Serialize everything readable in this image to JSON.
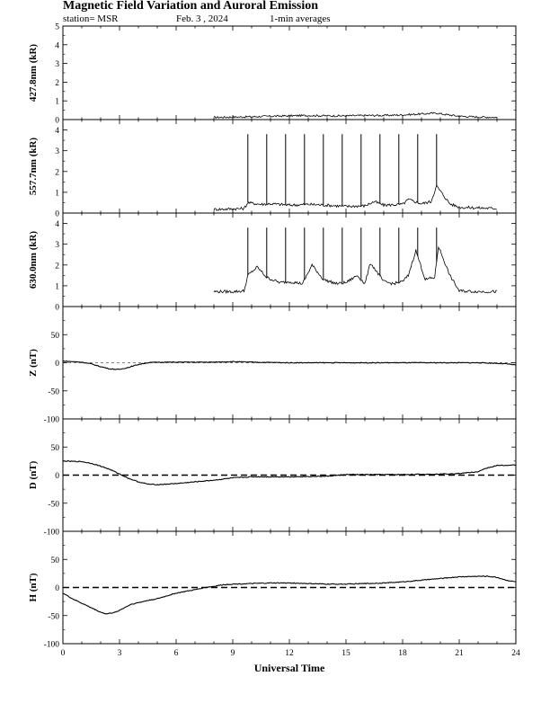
{
  "header": {
    "title": "Magnetic Field Variation and Auroral Emission",
    "station": "station= MSR",
    "date": "Feb. 3 , 2024",
    "note": "1-min averages"
  },
  "chart_data": [
    {
      "type": "line",
      "ylabel": "427.8nm (kR)",
      "xlim": [
        0,
        24
      ],
      "ylim": [
        0,
        5
      ],
      "yticks": [
        "0",
        "1",
        "2",
        "3",
        "4",
        "5"
      ],
      "series": [
        {
          "x": [
            8,
            9,
            10,
            11,
            12,
            13,
            14,
            15,
            16,
            17,
            18,
            19,
            19.8,
            20.2,
            21,
            22,
            23
          ],
          "y": [
            0.12,
            0.13,
            0.15,
            0.18,
            0.2,
            0.22,
            0.2,
            0.2,
            0.22,
            0.22,
            0.25,
            0.3,
            0.35,
            0.28,
            0.18,
            0.14,
            0.12
          ]
        }
      ]
    },
    {
      "type": "line",
      "ylabel": "557.7nm (kR)",
      "xlim": [
        0,
        24
      ],
      "ylim": [
        0,
        4.5
      ],
      "yticks": [
        "0",
        "1",
        "2",
        "3",
        "4"
      ],
      "series": [
        {
          "x": [
            8,
            9,
            9.6,
            9.8,
            10.5,
            11,
            12,
            13,
            14,
            15,
            16,
            16.5,
            17,
            18,
            18.3,
            19,
            19.5,
            19.8,
            20.5,
            21,
            22,
            23
          ],
          "y": [
            0.18,
            0.2,
            0.22,
            0.5,
            0.42,
            0.45,
            0.38,
            0.42,
            0.38,
            0.32,
            0.35,
            0.55,
            0.38,
            0.42,
            0.65,
            0.45,
            0.55,
            1.3,
            0.45,
            0.28,
            0.25,
            0.22
          ]
        }
      ],
      "spikes": {
        "x": [
          9.8,
          10.8,
          11.8,
          12.8,
          13.8,
          14.8,
          15.8,
          16.8,
          17.8,
          18.8,
          19.8
        ],
        "y": 3.8
      }
    },
    {
      "type": "line",
      "ylabel": "630.0nm (kR)",
      "xlim": [
        0,
        24
      ],
      "ylim": [
        0,
        4.5
      ],
      "yticks": [
        "0",
        "1",
        "2",
        "3",
        "4"
      ],
      "series": [
        {
          "x": [
            8,
            9,
            9.6,
            9.8,
            10.3,
            10.8,
            11.5,
            12,
            12.7,
            13.2,
            13.8,
            14.5,
            15,
            15.6,
            16,
            16.3,
            17,
            17.5,
            18,
            18.3,
            18.7,
            19.2,
            19.7,
            19.9,
            20.5,
            21,
            22,
            23
          ],
          "y": [
            0.72,
            0.72,
            0.75,
            1.5,
            1.9,
            1.4,
            1.15,
            1.2,
            1.1,
            2.0,
            1.3,
            1.1,
            1.15,
            1.5,
            1.1,
            2.1,
            1.2,
            1.1,
            1.2,
            1.5,
            2.7,
            1.3,
            1.4,
            2.9,
            1.5,
            0.75,
            0.72,
            0.72
          ]
        }
      ],
      "spikes": {
        "x": [
          9.8,
          10.8,
          11.8,
          12.8,
          13.8,
          14.8,
          15.8,
          16.8,
          17.8,
          18.8,
          19.8
        ],
        "y": 3.8
      }
    },
    {
      "type": "line",
      "ylabel": "Z (nT)",
      "xlim": [
        0,
        24
      ],
      "ylim": [
        -100,
        100
      ],
      "yticks": [
        "-100",
        "-50",
        "0",
        "50"
      ],
      "zero_line": "thin-dashed",
      "series": [
        {
          "x": [
            0,
            1,
            1.5,
            2,
            2.5,
            3,
            3.5,
            4,
            4.5,
            5,
            6,
            7,
            8,
            9,
            10,
            12,
            14,
            16,
            18,
            20,
            22,
            23,
            23.5,
            24
          ],
          "y": [
            3,
            1,
            -2,
            -7,
            -11,
            -12,
            -8,
            -3,
            0,
            1,
            1,
            1,
            1,
            2,
            1,
            0,
            0,
            0,
            0,
            0,
            0,
            -1,
            -2,
            -4
          ]
        }
      ]
    },
    {
      "type": "line",
      "ylabel": "D (nT)",
      "xlim": [
        0,
        24
      ],
      "ylim": [
        -100,
        100
      ],
      "yticks": [
        "-100",
        "-50",
        "0",
        "50"
      ],
      "zero_line": "dashed",
      "series": [
        {
          "x": [
            0,
            1,
            1.5,
            2,
            2.5,
            3,
            3.5,
            4,
            4.5,
            5,
            6,
            7,
            8,
            9,
            10,
            12,
            14,
            15,
            16,
            18,
            20,
            21,
            22,
            22.5,
            23,
            24
          ],
          "y": [
            25,
            24,
            21,
            16,
            10,
            2,
            -6,
            -12,
            -16,
            -17,
            -15,
            -12,
            -9,
            -5,
            -3,
            -3,
            -2,
            1,
            1,
            1,
            2,
            3,
            6,
            13,
            17,
            18
          ]
        }
      ]
    },
    {
      "type": "line",
      "ylabel": "H (nT)",
      "xlim": [
        0,
        24
      ],
      "ylim": [
        -100,
        100
      ],
      "yticks": [
        "-100",
        "-50",
        "0",
        "50"
      ],
      "xticks": [
        "0",
        "3",
        "6",
        "9",
        "12",
        "15",
        "18",
        "21",
        "24"
      ],
      "xlabel": "Universal Time",
      "zero_line": "dashed",
      "series": [
        {
          "x": [
            0,
            0.5,
            1,
            1.5,
            2,
            2.3,
            2.8,
            3.2,
            3.6,
            4,
            4.5,
            5,
            5.5,
            6,
            6.5,
            7,
            7.5,
            8,
            8.5,
            9,
            10,
            11,
            12,
            13,
            14,
            15,
            16,
            17,
            18,
            19,
            20,
            21,
            22,
            22.5,
            23,
            23.5,
            24
          ],
          "y": [
            -10,
            -20,
            -28,
            -36,
            -44,
            -47,
            -44,
            -37,
            -30,
            -27,
            -23,
            -20,
            -15,
            -10,
            -7,
            -4,
            0,
            2,
            5,
            6,
            7,
            8,
            8,
            7,
            6,
            6,
            7,
            8,
            10,
            13,
            16,
            19,
            20,
            20,
            18,
            13,
            10
          ]
        }
      ]
    }
  ]
}
